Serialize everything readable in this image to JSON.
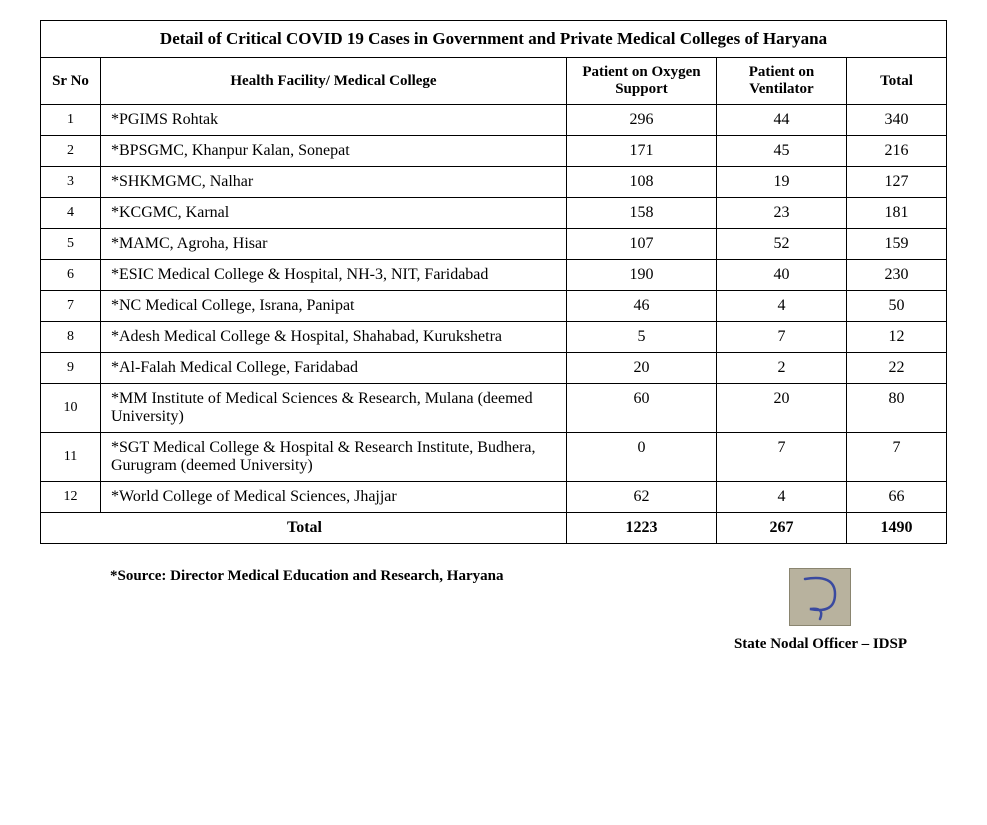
{
  "table": {
    "title": "Detail of Critical COVID 19 Cases in Government and Private Medical Colleges of Haryana",
    "columns": {
      "sr": "Sr No",
      "facility": "Health Facility/ Medical College",
      "oxygen": "Patient on Oxygen Support",
      "ventilator": "Patient on Ventilator",
      "total": "Total"
    },
    "rows": [
      {
        "sr": "1",
        "facility": "*PGIMS Rohtak",
        "oxygen": "296",
        "ventilator": "44",
        "total": "340"
      },
      {
        "sr": "2",
        "facility": "*BPSGMC, Khanpur Kalan, Sonepat",
        "oxygen": "171",
        "ventilator": "45",
        "total": "216"
      },
      {
        "sr": "3",
        "facility": "*SHKMGMC, Nalhar",
        "oxygen": "108",
        "ventilator": "19",
        "total": "127"
      },
      {
        "sr": "4",
        "facility": "*KCGMC, Karnal",
        "oxygen": "158",
        "ventilator": "23",
        "total": "181"
      },
      {
        "sr": "5",
        "facility": "*MAMC, Agroha, Hisar",
        "oxygen": "107",
        "ventilator": "52",
        "total": "159"
      },
      {
        "sr": "6",
        "facility": "*ESIC Medical College & Hospital, NH-3, NIT, Faridabad",
        "oxygen": "190",
        "ventilator": "40",
        "total": "230"
      },
      {
        "sr": "7",
        "facility": "*NC Medical College, Israna, Panipat",
        "oxygen": "46",
        "ventilator": "4",
        "total": "50"
      },
      {
        "sr": "8",
        "facility": "*Adesh Medical College & Hospital, Shahabad, Kurukshetra",
        "oxygen": "5",
        "ventilator": "7",
        "total": "12"
      },
      {
        "sr": "9",
        "facility": "*Al-Falah Medical College, Faridabad",
        "oxygen": "20",
        "ventilator": "2",
        "total": "22"
      },
      {
        "sr": "10",
        "facility": "*MM Institute of Medical Sciences & Research, Mulana (deemed University)",
        "oxygen": "60",
        "ventilator": "20",
        "total": "80"
      },
      {
        "sr": "11",
        "facility": "*SGT Medical College & Hospital & Research Institute, Budhera, Gurugram (deemed University)",
        "oxygen": "0",
        "ventilator": "7",
        "total": "7"
      },
      {
        "sr": "12",
        "facility": "*World College of Medical Sciences, Jhajjar",
        "oxygen": "62",
        "ventilator": "4",
        "total": "66"
      }
    ],
    "totals": {
      "label": "Total",
      "oxygen": "1223",
      "ventilator": "267",
      "total": "1490"
    }
  },
  "footer": {
    "source": "*Source: Director Medical Education and Research, Haryana",
    "signatory": "State Nodal Officer – IDSP"
  },
  "style": {
    "font_family": "Times New Roman",
    "border_color": "#000000",
    "background_color": "#ffffff",
    "text_color": "#000000",
    "title_fontsize": 17,
    "header_fontsize": 15,
    "cell_fontsize": 16,
    "signature_bg": "#b8b29e",
    "signature_ink": "#3a4aa0"
  }
}
